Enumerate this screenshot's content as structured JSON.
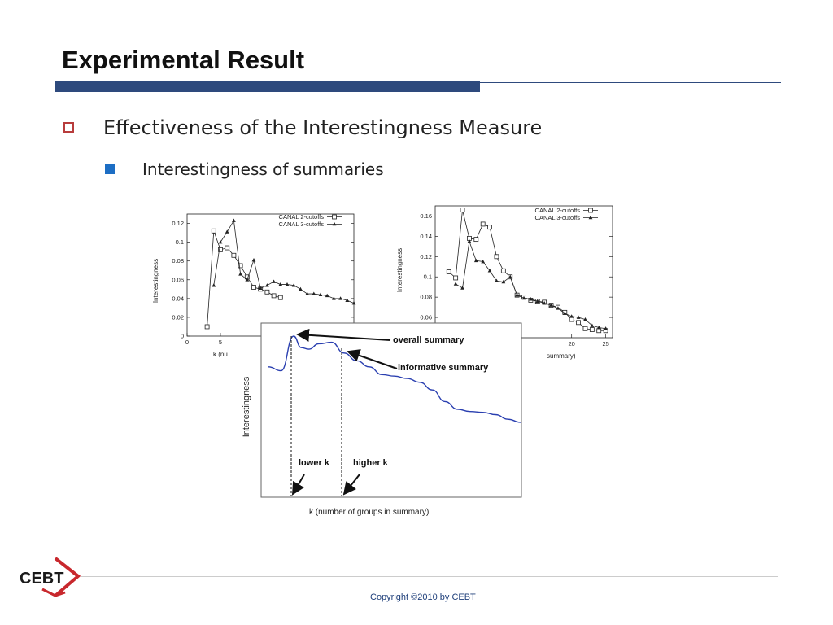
{
  "slide": {
    "title": "Experimental Result",
    "bullet1": "Effectiveness of the Interestingness Measure",
    "bullet2": "Interestingness of summaries"
  },
  "footer": {
    "copyright": "Copyright ©2010 by CEBT",
    "logo_text": "CEBT"
  },
  "colors": {
    "title_bar": "#2e4a7d",
    "bullet1_marker": "#b83c3c",
    "bullet2_marker": "#1d6ec4",
    "curve": "#2a3fb0",
    "logo_red": "#c8282d"
  },
  "chart_data": [
    {
      "type": "line",
      "ylabel": "Interestingness",
      "xlabel": "k (nu",
      "xlim": [
        0,
        25
      ],
      "ylim": [
        0,
        0.13
      ],
      "xticks": [
        "0",
        "5"
      ],
      "yticks": [
        "0",
        "0.02",
        "0.04",
        "0.06",
        "0.08",
        "0.1",
        "0.12"
      ],
      "legend_position": "top-right",
      "series": [
        {
          "name": "CANAL 2-cutoffs",
          "marker": "square",
          "x": [
            3,
            4,
            5,
            6,
            7,
            8,
            9,
            10,
            11,
            12,
            13,
            14
          ],
          "y": [
            0.01,
            0.112,
            0.092,
            0.094,
            0.086,
            0.075,
            0.063,
            0.052,
            0.05,
            0.047,
            0.043,
            0.041
          ]
        },
        {
          "name": "CANAL 3-cutoffs",
          "marker": "triangle",
          "x": [
            4,
            5,
            6,
            7,
            8,
            9,
            10,
            11,
            12,
            13,
            14,
            15,
            16,
            17,
            18,
            19,
            20,
            21,
            22,
            23,
            24,
            25
          ],
          "y": [
            0.054,
            0.1,
            0.111,
            0.123,
            0.066,
            0.06,
            0.081,
            0.051,
            0.054,
            0.058,
            0.055,
            0.055,
            0.054,
            0.05,
            0.045,
            0.045,
            0.044,
            0.043,
            0.04,
            0.04,
            0.038,
            0.035
          ]
        }
      ]
    },
    {
      "type": "line",
      "ylabel": "Interestingness",
      "xlabel": "summary)",
      "xlim": [
        0,
        26
      ],
      "ylim": [
        0.04,
        0.17
      ],
      "xticks": [
        "20",
        "25"
      ],
      "yticks": [
        "0.06",
        "0.08",
        "0.1",
        "0.12",
        "0.14",
        "0.16"
      ],
      "legend_position": "top-right",
      "series": [
        {
          "name": "CANAL 2-cutoffs",
          "marker": "square",
          "x": [
            2,
            3,
            4,
            5,
            6,
            7,
            8,
            9,
            10,
            11,
            12,
            13,
            14,
            15,
            16,
            17,
            18,
            19,
            20,
            21,
            22,
            23,
            24,
            25
          ],
          "y": [
            0.105,
            0.099,
            0.166,
            0.138,
            0.137,
            0.152,
            0.149,
            0.12,
            0.106,
            0.1,
            0.082,
            0.08,
            0.077,
            0.076,
            0.075,
            0.072,
            0.07,
            0.065,
            0.058,
            0.055,
            0.049,
            0.048,
            0.047,
            0.047
          ]
        },
        {
          "name": "CANAL 3-cutoffs",
          "marker": "triangle",
          "x": [
            3,
            4,
            5,
            6,
            7,
            8,
            9,
            10,
            11,
            12,
            13,
            14,
            15,
            16,
            17,
            18,
            19,
            20,
            21,
            22,
            23,
            24,
            25
          ],
          "y": [
            0.093,
            0.089,
            0.135,
            0.116,
            0.115,
            0.106,
            0.096,
            0.095,
            0.1,
            0.082,
            0.079,
            0.078,
            0.076,
            0.074,
            0.072,
            0.069,
            0.064,
            0.061,
            0.06,
            0.058,
            0.052,
            0.05,
            0.049
          ]
        }
      ]
    },
    {
      "type": "line",
      "ylabel": "Interestingness",
      "xlabel": "k (number of groups in summary)",
      "annotations": [
        "overall summary",
        "informative summary",
        "lower k",
        "higher k"
      ],
      "series": [
        {
          "name": "",
          "x": [
            0,
            0.05,
            0.1,
            0.13,
            0.16,
            0.2,
            0.25,
            0.3,
            0.35,
            0.4,
            0.45,
            0.5,
            0.55,
            0.6,
            0.65,
            0.7,
            0.75,
            0.8,
            0.85,
            0.9,
            0.95,
            1.0
          ],
          "y": [
            0.6,
            0.55,
            1.0,
            0.85,
            0.83,
            0.9,
            0.92,
            0.78,
            0.68,
            0.6,
            0.5,
            0.48,
            0.45,
            0.4,
            0.3,
            0.15,
            0.05,
            0.02,
            0.01,
            -0.02,
            -0.08,
            -0.12
          ]
        }
      ]
    }
  ]
}
